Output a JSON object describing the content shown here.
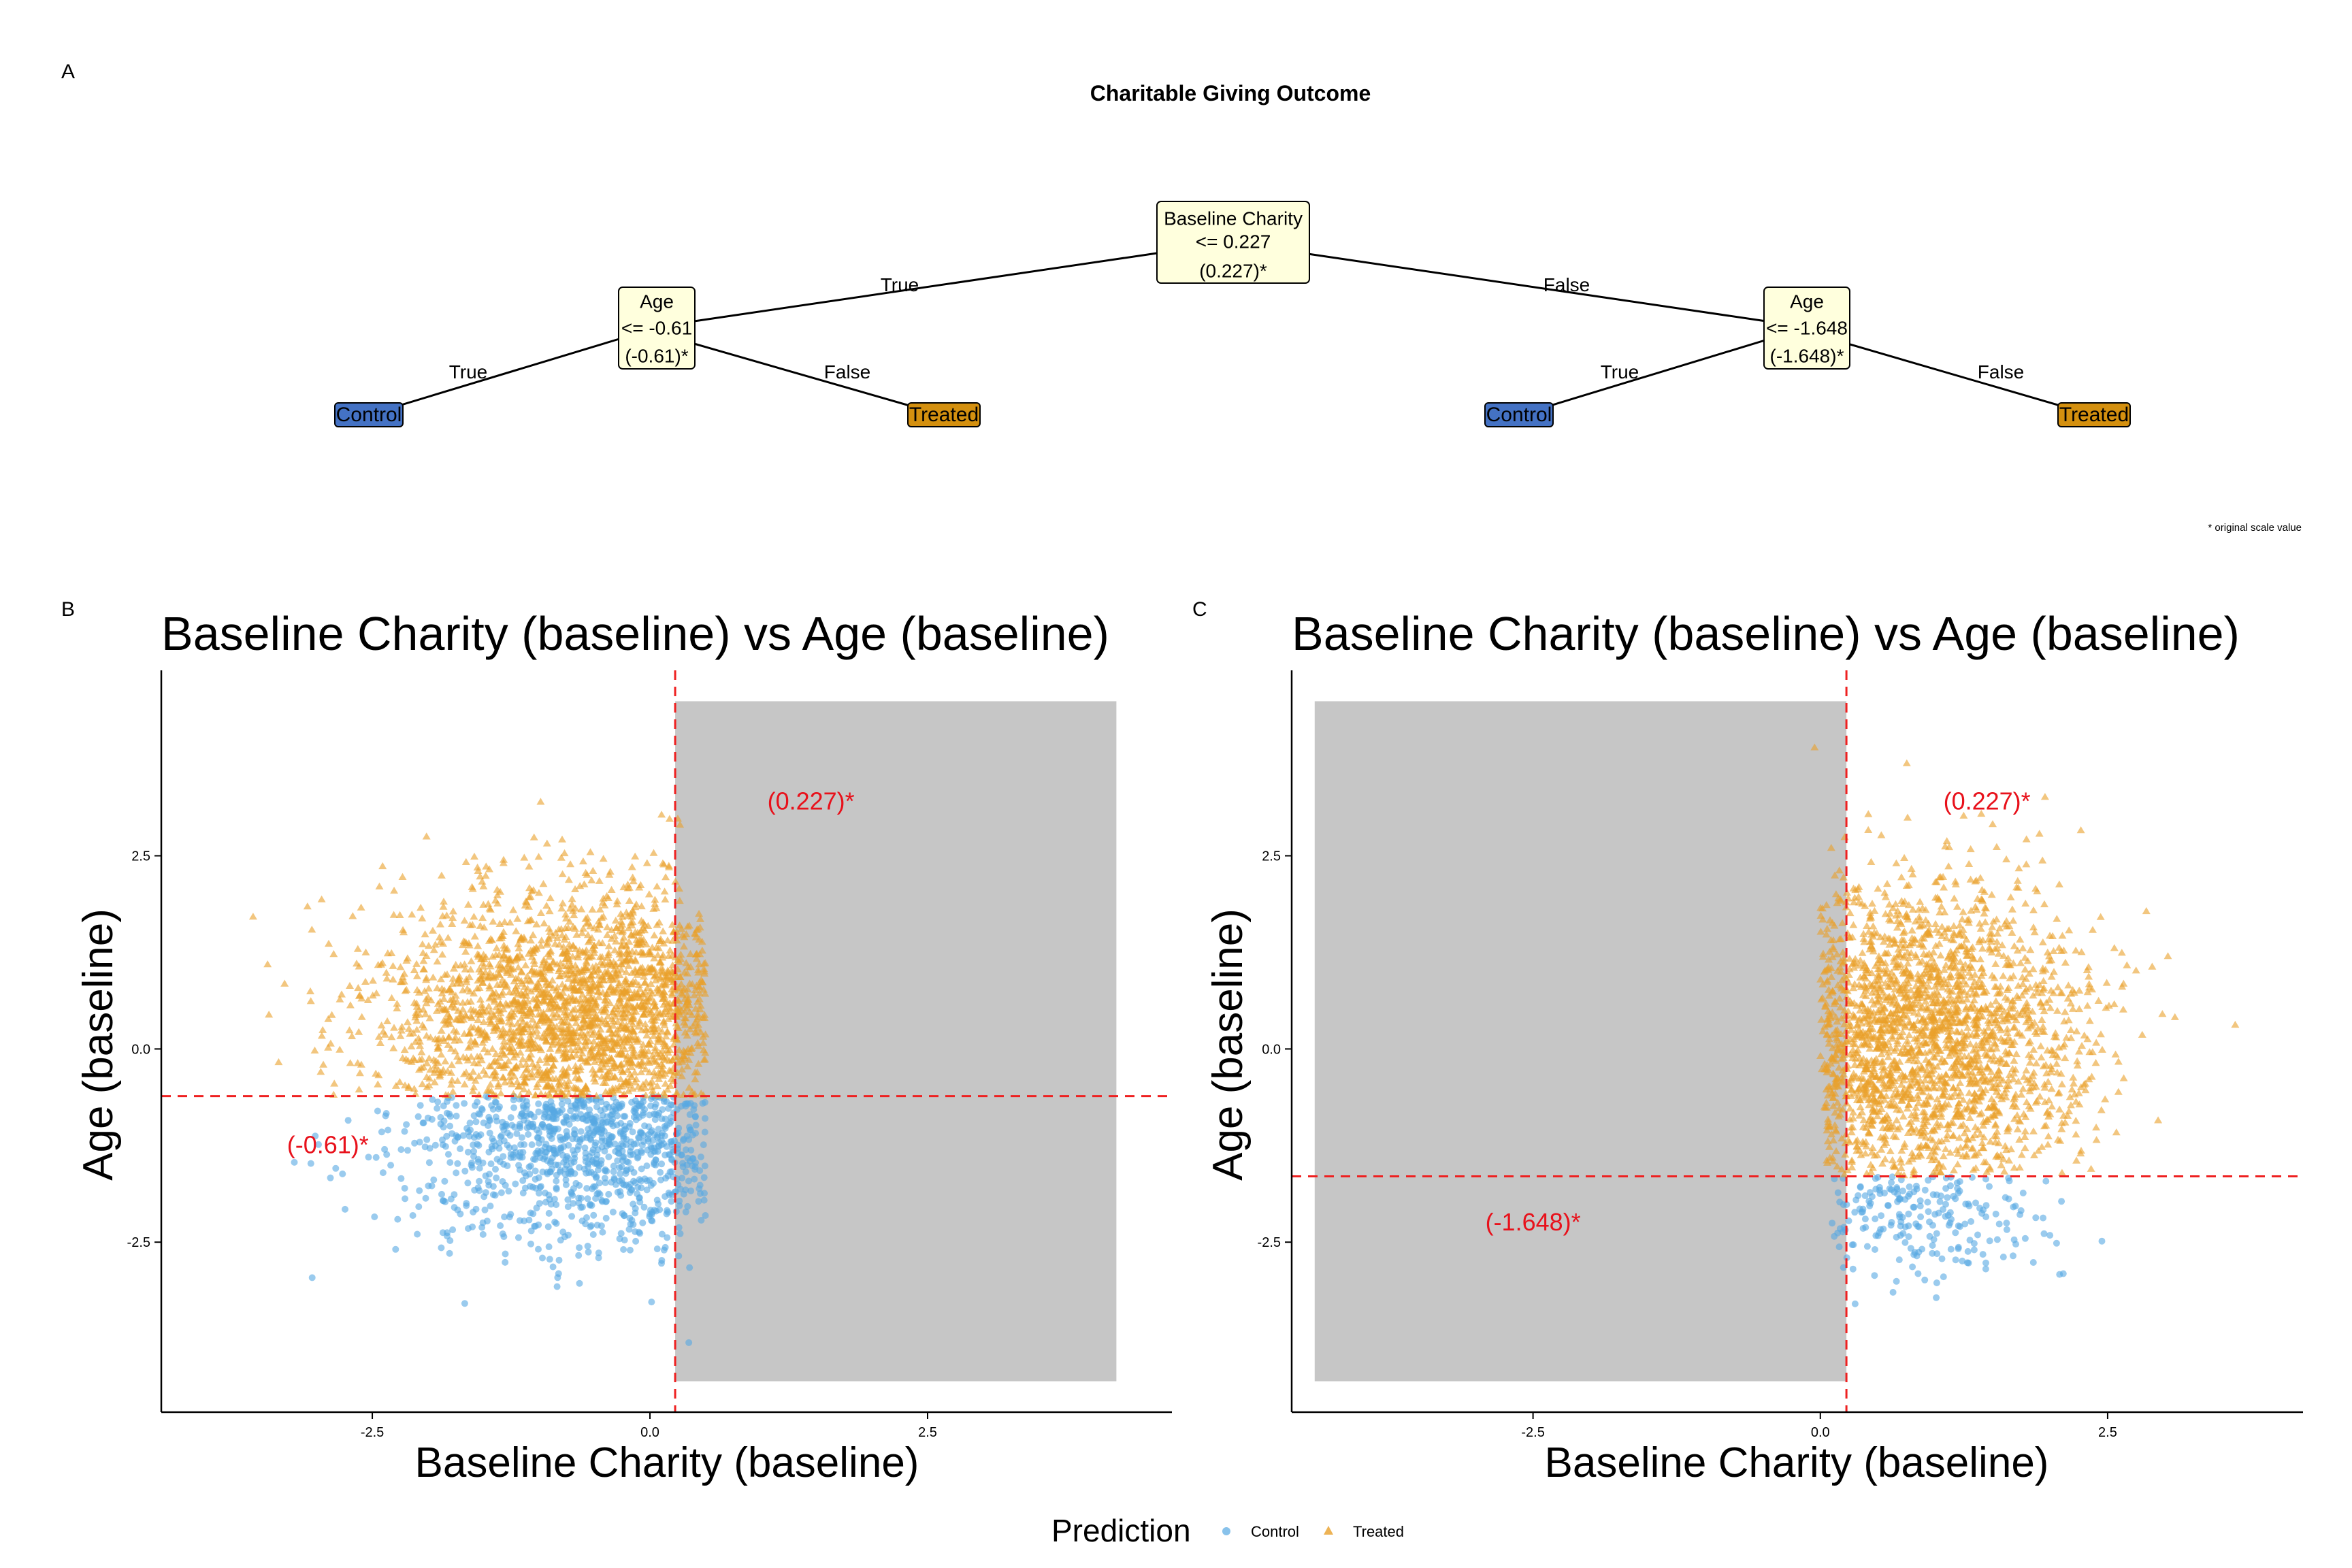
{
  "panels": {
    "a": "A",
    "b": "B",
    "c": "C"
  },
  "tree": {
    "title": "Charitable Giving Outcome",
    "root": {
      "var": "Baseline Charity",
      "rule": "<= 0.227",
      "orig": "(0.227)*"
    },
    "left": {
      "var": "Age",
      "rule": "<= -0.61",
      "orig": "(-0.61)*"
    },
    "right": {
      "var": "Age",
      "rule": "<= -1.648",
      "orig": "(-1.648)*"
    },
    "edge_true": "True",
    "edge_false": "False",
    "leaf_control": "Control",
    "leaf_treated": "Treated",
    "footnote": "* original scale value",
    "colors": {
      "node": "#ffffdd",
      "control": "#4472c4",
      "treated": "#d4900f"
    }
  },
  "legend": {
    "title": "Prediction",
    "control": "Control",
    "treated": "Treated"
  },
  "colors": {
    "control": "#56a8e3",
    "treated": "#e9a02a",
    "shade": "#c6c6c6",
    "line": "#ee2020"
  },
  "chart_data": [
    {
      "type": "scatter",
      "title": "Baseline Charity (baseline) vs Age (baseline)",
      "xlabel": "Baseline Charity (baseline)",
      "ylabel": "Age (baseline)",
      "xlim": [
        -4.4,
        4.7
      ],
      "ylim": [
        -4.7,
        4.9
      ],
      "x_ticks": [
        "-2.5",
        "0.0",
        "2.5"
      ],
      "y_ticks": [
        "-2.5",
        "0.0",
        "2.5"
      ],
      "x_tick_values": [
        -2.5,
        0.0,
        2.5
      ],
      "y_tick_values": [
        -2.5,
        0.0,
        2.5
      ],
      "vline": 0.227,
      "hline": -0.61,
      "vline_label": "(0.227)*",
      "hline_label": "(-0.61)*",
      "vline_label_pos": [
        1.45,
        3.1
      ],
      "hline_label_pos": [
        -2.9,
        -1.35
      ],
      "shade": {
        "x": [
          0.227,
          4.2
        ],
        "y": [
          -4.3,
          4.5
        ]
      },
      "series": [
        {
          "name": "Control",
          "condition": "Age (baseline) <= -0.61",
          "x_range": [
            -3.3,
            0.5
          ],
          "x_center": -0.5,
          "x_sd": 0.9,
          "y_range": [
            -3.6,
            -0.61
          ],
          "y_center": -1.0,
          "y_sd": 0.8,
          "count": 1000
        },
        {
          "name": "Treated",
          "condition": "Age (baseline) > -0.61",
          "x_range": [
            -3.9,
            0.5
          ],
          "x_center": -0.6,
          "x_sd": 0.9,
          "y_range": [
            -0.61,
            4.0
          ],
          "y_center": 0.4,
          "y_sd": 0.85,
          "count": 2300
        }
      ],
      "extra_points": [
        [
          0.35,
          -3.8
        ]
      ]
    },
    {
      "type": "scatter",
      "title": "Baseline Charity (baseline) vs Age (baseline)",
      "xlabel": "Baseline Charity (baseline)",
      "ylabel": "Age (baseline)",
      "xlim": [
        -4.6,
        4.2
      ],
      "ylim": [
        -4.7,
        4.9
      ],
      "x_ticks": [
        "-2.5",
        "0.0",
        "2.5"
      ],
      "y_ticks": [
        "-2.5",
        "0.0",
        "2.5"
      ],
      "x_tick_values": [
        -2.5,
        0.0,
        2.5
      ],
      "y_tick_values": [
        -2.5,
        0.0,
        2.5
      ],
      "vline": 0.227,
      "hline": -1.648,
      "vline_label": "(0.227)*",
      "hline_label": "(-1.648)*",
      "vline_label_pos": [
        1.45,
        3.1
      ],
      "hline_label_pos": [
        -2.5,
        -2.35
      ],
      "shade": {
        "x": [
          -4.4,
          0.227
        ],
        "y": [
          -4.3,
          4.5
        ]
      },
      "series": [
        {
          "name": "Control",
          "condition": "Age (baseline) <= -1.648",
          "x_range": [
            0.1,
            3.1
          ],
          "x_center": 0.8,
          "x_sd": 0.6,
          "y_range": [
            -3.6,
            -1.648
          ],
          "y_center": -2.1,
          "y_sd": 0.5,
          "count": 220
        },
        {
          "name": "Treated",
          "condition": "Age (baseline) > -1.648",
          "x_range": [
            0.0,
            3.7
          ],
          "x_center": 0.85,
          "x_sd": 0.7,
          "y_range": [
            -1.648,
            3.9
          ],
          "y_center": 0.1,
          "y_sd": 1.0,
          "count": 2300
        }
      ],
      "extra_points": [
        [
          -0.05,
          3.9
        ]
      ]
    }
  ]
}
